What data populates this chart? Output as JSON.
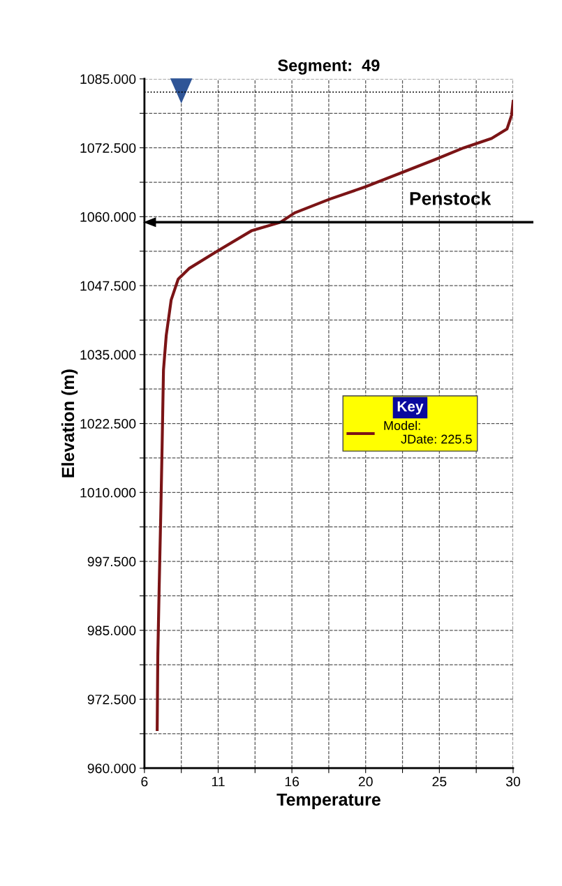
{
  "chart_data": {
    "type": "line",
    "title": "Segment:  49",
    "xlabel": "Temperature",
    "ylabel": "Elevation (m)",
    "legend_title": "Key",
    "series": [
      {
        "name": "Model:\n     JDate: 225.5",
        "color": "#7b1416",
        "x": [
          6.83,
          6.87,
          6.96,
          7.06,
          7.15,
          7.24,
          7.42,
          7.74,
          8.2,
          8.9,
          10.7,
          13.0,
          14.86,
          15.78,
          18.07,
          20.36,
          22.66,
          24.95,
          26.79,
          28.6,
          29.6,
          29.9,
          30.0
        ],
        "values": [
          967.0,
          980.3,
          992.9,
          1005.6,
          1018.3,
          1032.2,
          1038.5,
          1044.9,
          1048.7,
          1050.6,
          1053.7,
          1057.5,
          1059.0,
          1060.7,
          1063.2,
          1065.4,
          1067.9,
          1070.4,
          1072.5,
          1074.2,
          1075.9,
          1078.4,
          1080.9
        ]
      }
    ],
    "xlim": [
      6,
      30
    ],
    "xticks": [
      {
        "value": 6,
        "label": "6"
      },
      {
        "value": 8.4,
        "label": null
      },
      {
        "value": 10.8,
        "label": "11"
      },
      {
        "value": 13.2,
        "label": null
      },
      {
        "value": 15.6,
        "label": "16"
      },
      {
        "value": 18.0,
        "label": null
      },
      {
        "value": 20.4,
        "label": "20"
      },
      {
        "value": 22.8,
        "label": null
      },
      {
        "value": 25.2,
        "label": "25"
      },
      {
        "value": 27.6,
        "label": null
      },
      {
        "value": 30,
        "label": "30"
      }
    ],
    "ylim": [
      960,
      1085
    ],
    "yticks": [
      {
        "value": 960,
        "label": "960.000"
      },
      {
        "value": 966.25,
        "label": null
      },
      {
        "value": 972.5,
        "label": "972.500"
      },
      {
        "value": 978.75,
        "label": null
      },
      {
        "value": 985,
        "label": "985.000"
      },
      {
        "value": 991.25,
        "label": null
      },
      {
        "value": 997.5,
        "label": "997.500"
      },
      {
        "value": 1003.75,
        "label": null
      },
      {
        "value": 1010,
        "label": "1010.000"
      },
      {
        "value": 1016.25,
        "label": null
      },
      {
        "value": 1022.5,
        "label": "1022.500"
      },
      {
        "value": 1028.75,
        "label": null
      },
      {
        "value": 1035,
        "label": "1035.000"
      },
      {
        "value": 1041.25,
        "label": null
      },
      {
        "value": 1047.5,
        "label": "1047.500"
      },
      {
        "value": 1053.75,
        "label": null
      },
      {
        "value": 1060,
        "label": "1060.000"
      },
      {
        "value": 1066.25,
        "label": null
      },
      {
        "value": 1072.5,
        "label": "1072.500"
      },
      {
        "value": 1078.75,
        "label": null
      },
      {
        "value": 1085,
        "label": "1085.000"
      }
    ],
    "ref_lines": [
      {
        "axis": "y",
        "value": 1082.6,
        "line_style": "dotted",
        "color": "#000000"
      },
      {
        "axis": "y",
        "value": 1059.0,
        "label": "Penstock",
        "line_style": "solid",
        "color": "#000000"
      }
    ],
    "grid": true,
    "legend": "center right",
    "marker": "none",
    "line_style": "solid"
  }
}
